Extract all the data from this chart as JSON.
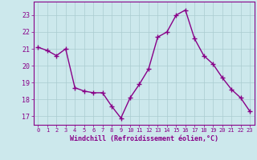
{
  "x": [
    0,
    1,
    2,
    3,
    4,
    5,
    6,
    7,
    8,
    9,
    10,
    11,
    12,
    13,
    14,
    15,
    16,
    17,
    18,
    19,
    20,
    21,
    22,
    23
  ],
  "y": [
    21.1,
    20.9,
    20.6,
    21.0,
    18.7,
    18.5,
    18.4,
    18.4,
    17.6,
    16.9,
    18.1,
    18.9,
    19.8,
    21.7,
    22.0,
    23.0,
    23.3,
    21.6,
    20.6,
    20.1,
    19.3,
    18.6,
    18.1,
    17.3
  ],
  "title": "",
  "xlabel": "Windchill (Refroidissement éolien,°C)",
  "ylabel": "",
  "xlim": [
    -0.5,
    23.5
  ],
  "ylim": [
    16.5,
    23.8
  ],
  "yticks": [
    17,
    18,
    19,
    20,
    21,
    22,
    23
  ],
  "xticks": [
    0,
    1,
    2,
    3,
    4,
    5,
    6,
    7,
    8,
    9,
    10,
    11,
    12,
    13,
    14,
    15,
    16,
    17,
    18,
    19,
    20,
    21,
    22,
    23
  ],
  "line_color": "#880088",
  "marker": "+",
  "bg_color": "#cce8ec",
  "grid_color": "#aaccd0",
  "tick_label_color": "#880088",
  "xlabel_color": "#880088",
  "line_width": 1.0,
  "marker_size": 4,
  "marker_linewidth": 1.0
}
